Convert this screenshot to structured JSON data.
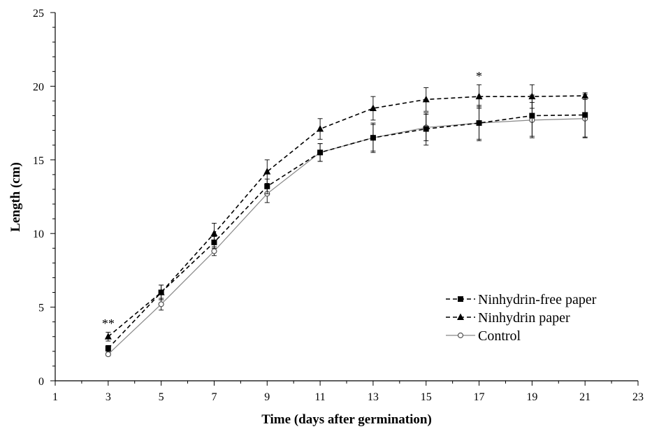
{
  "chart_data": {
    "type": "line",
    "title": "",
    "xlabel": "Time (days after germination)",
    "ylabel": "Length (cm)",
    "xlim": [
      1,
      23
    ],
    "ylim": [
      0,
      25
    ],
    "xticks": [
      1,
      3,
      5,
      7,
      9,
      11,
      13,
      15,
      17,
      19,
      21,
      23
    ],
    "yticks": [
      0,
      5,
      10,
      15,
      20,
      25
    ],
    "grid": false,
    "legend_position": "lower-right",
    "x": [
      3,
      5,
      7,
      9,
      11,
      13,
      15,
      17,
      19,
      21
    ],
    "series": [
      {
        "name": "Ninhydrin-free paper",
        "style": "dashed",
        "marker": "filled-square",
        "color": "#000000",
        "values": [
          2.2,
          6.0,
          9.4,
          13.2,
          15.5,
          16.5,
          17.1,
          17.5,
          18.0,
          18.05
        ],
        "errors": [
          0.2,
          0.5,
          0.4,
          0.5,
          0.6,
          1.0,
          1.1,
          1.2,
          1.4,
          1.5
        ]
      },
      {
        "name": "Ninhydrin paper",
        "style": "dashed",
        "marker": "filled-triangle",
        "color": "#000000",
        "values": [
          3.0,
          6.0,
          10.0,
          14.2,
          17.1,
          18.5,
          19.1,
          19.3,
          19.3,
          19.35
        ],
        "errors": [
          0.3,
          0.5,
          0.7,
          0.8,
          0.7,
          0.8,
          0.8,
          0.8,
          0.8,
          0.1
        ]
      },
      {
        "name": "Control",
        "style": "solid",
        "marker": "open-circle",
        "color": "#888888",
        "values": [
          1.8,
          5.2,
          8.8,
          12.7,
          15.5,
          16.5,
          17.2,
          17.5,
          17.7,
          17.8
        ],
        "errors": [
          0.1,
          0.4,
          0.3,
          0.6,
          0.6,
          0.9,
          0.9,
          1.1,
          1.2,
          1.3
        ]
      }
    ],
    "annotations": [
      {
        "text": "**",
        "x": 3,
        "y": 3.6
      },
      {
        "text": "*",
        "x": 17,
        "y": 20.4
      }
    ]
  }
}
